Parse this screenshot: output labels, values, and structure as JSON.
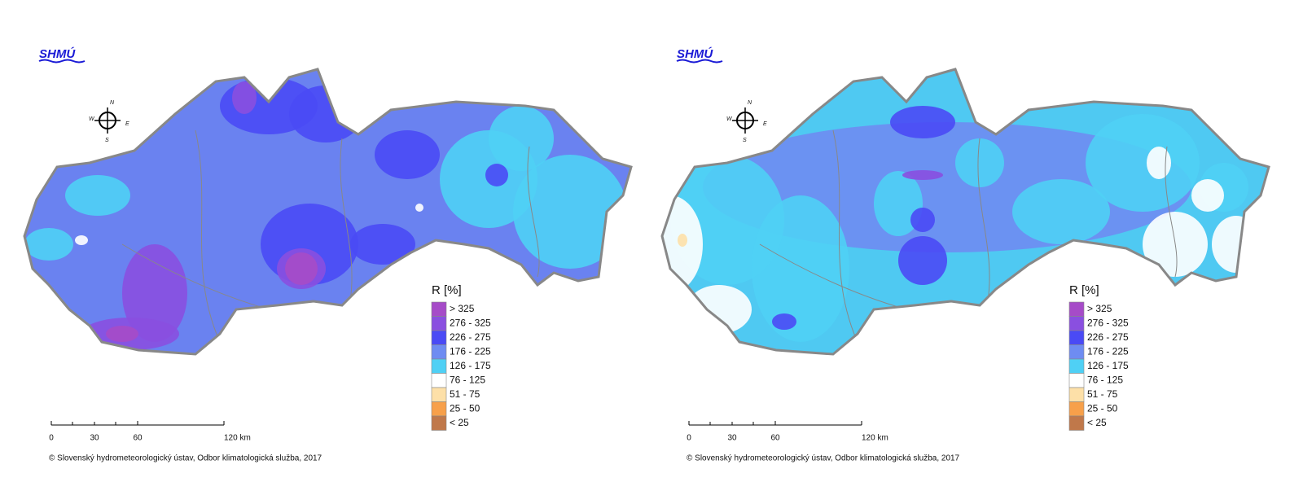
{
  "logo": "SHMÚ",
  "compass": {
    "n": "N",
    "w": "W",
    "e": "E",
    "s": "S"
  },
  "legend": {
    "title": "R [%]",
    "items": [
      {
        "label": "> 325",
        "color": "#a64bc8"
      },
      {
        "label": "276 - 325",
        "color": "#8a4fe0"
      },
      {
        "label": "226 - 275",
        "color": "#4a4af5"
      },
      {
        "label": "176 - 225",
        "color": "#6e8cf2"
      },
      {
        "label": "126 - 175",
        "color": "#4fd0f5"
      },
      {
        "label": "76 - 125",
        "color": "#ffffff"
      },
      {
        "label": "51 - 75",
        "color": "#fde0a8"
      },
      {
        "label": "25 - 50",
        "color": "#f7a04a"
      },
      {
        "label": "< 25",
        "color": "#c0784a"
      }
    ]
  },
  "scale": [
    "0",
    "30",
    "60",
    "120 km"
  ],
  "copyright": "© Slovenský hydrometeorologický ústav, Odbor klimatologická služba, 2017"
}
